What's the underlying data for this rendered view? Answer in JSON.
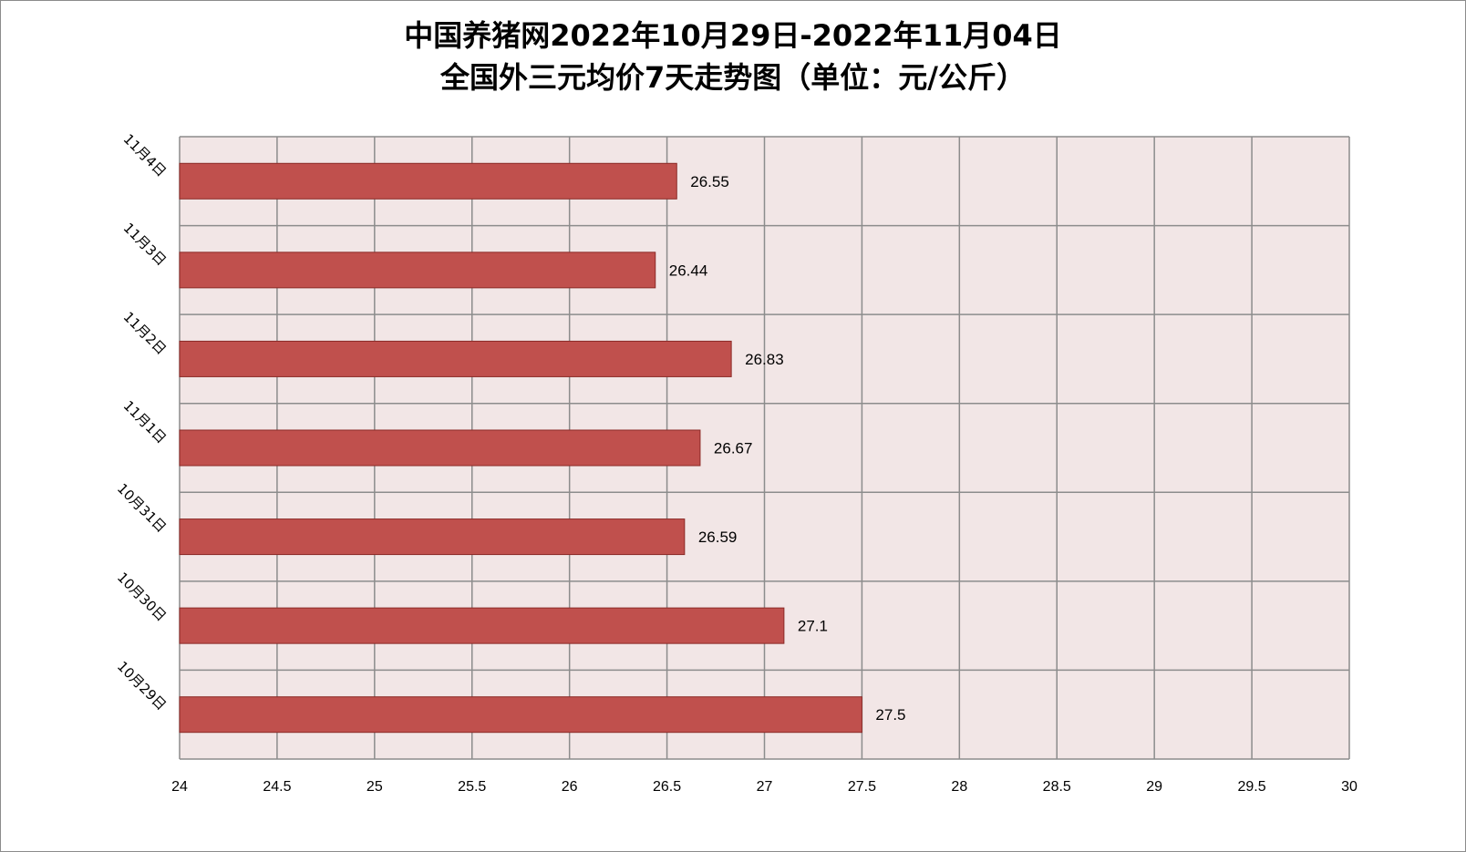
{
  "chart_data": {
    "type": "bar",
    "orientation": "horizontal",
    "title_lines": [
      "中国养猪网2022年10月29日-2022年11月04日",
      "全国外三元均价7天走势图（单位：元/公斤）"
    ],
    "categories": [
      "11月4日",
      "11月3日",
      "11月2日",
      "11月1日",
      "10月31日",
      "10月30日",
      "10月29日"
    ],
    "values": [
      26.55,
      26.44,
      26.83,
      26.67,
      26.59,
      27.1,
      27.5
    ],
    "data_labels": [
      "26.55",
      "26.44",
      "26.83",
      "26.67",
      "26.59",
      "27.1",
      "27.5"
    ],
    "xlim": [
      24,
      30
    ],
    "xticks": [
      24,
      24.5,
      25,
      25.5,
      26,
      26.5,
      27,
      27.5,
      28,
      28.5,
      29,
      29.5,
      30
    ],
    "xtick_labels": [
      "24",
      "24.5",
      "25",
      "25.5",
      "26",
      "26.5",
      "27",
      "27.5",
      "28",
      "28.5",
      "29",
      "29.5",
      "30"
    ],
    "xlabel": "",
    "ylabel": "",
    "grid": true,
    "legend": "none",
    "colors": {
      "bar_fill": "#c0504d",
      "bar_stroke": "#8b2a27",
      "plot_background": "#f2e6e6",
      "grid": "#8c8c8c"
    }
  }
}
